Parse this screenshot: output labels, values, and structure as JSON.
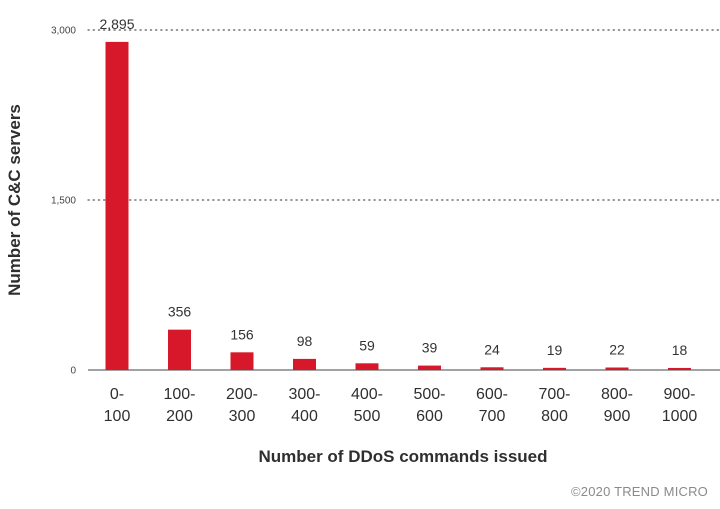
{
  "chart_data": {
    "type": "bar",
    "categories": [
      "0-100",
      "100-200",
      "200-300",
      "300-400",
      "400-500",
      "500-600",
      "600-700",
      "700-800",
      "800-900",
      "900-1000"
    ],
    "category_lines": [
      [
        "0-",
        "100"
      ],
      [
        "100-",
        "200"
      ],
      [
        "200-",
        "300"
      ],
      [
        "300-",
        "400"
      ],
      [
        "400-",
        "500"
      ],
      [
        "500-",
        "600"
      ],
      [
        "600-",
        "700"
      ],
      [
        "700-",
        "800"
      ],
      [
        "800-",
        "900"
      ],
      [
        "900-",
        "1000"
      ]
    ],
    "values": [
      2895,
      356,
      156,
      98,
      59,
      39,
      24,
      19,
      22,
      18
    ],
    "data_labels": [
      "2,895",
      "356",
      "156",
      "98",
      "59",
      "39",
      "24",
      "19",
      "22",
      "18"
    ],
    "ylabel": "Number of C&C servers",
    "xlabel": "Number of DDoS commands issued",
    "ylim": [
      0,
      3000
    ],
    "yticks": [
      {
        "value": 0,
        "label": "0"
      },
      {
        "value": 1500,
        "label": "1,500"
      },
      {
        "value": 3000,
        "label": "3,000"
      }
    ],
    "grid": "horizontal dotted",
    "legend": "none",
    "bar_color": "#d7182a"
  },
  "credit": "©2020 TREND MICRO"
}
